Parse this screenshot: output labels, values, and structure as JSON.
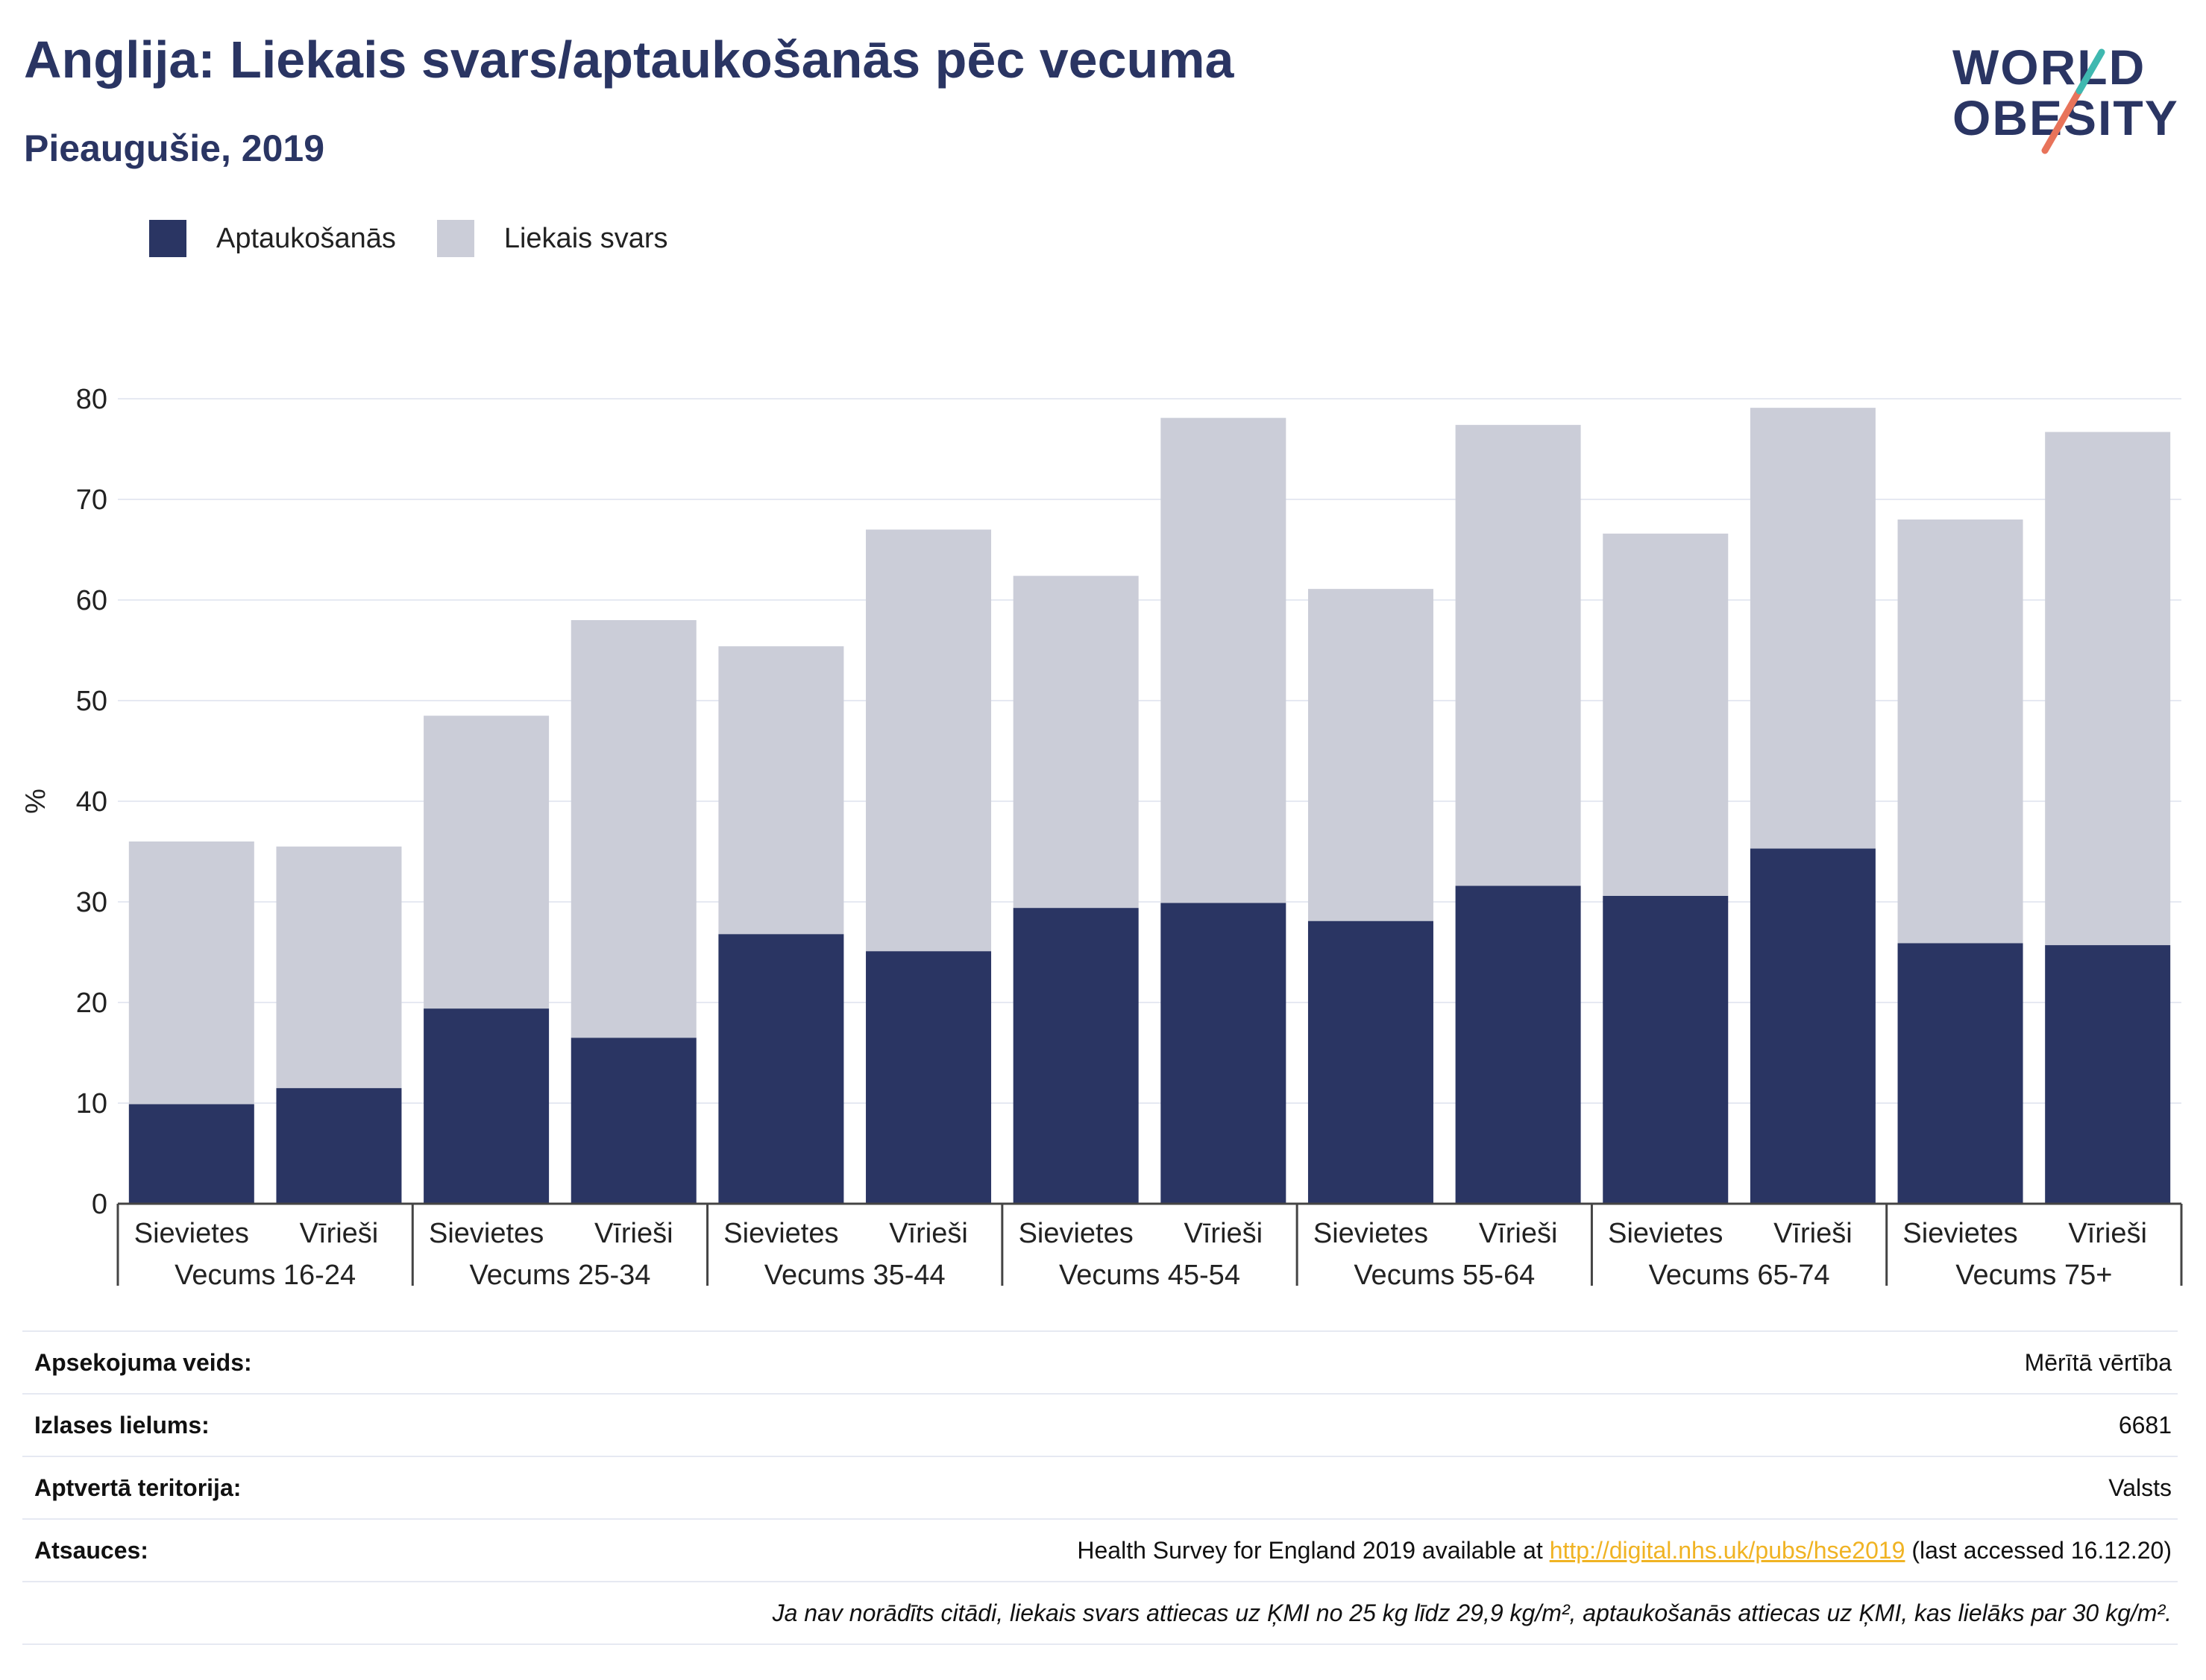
{
  "header": {
    "title": "Anglija: Liekais svars/aptaukošanās pēc vecuma",
    "subtitle": "Pieaugušie, 2019"
  },
  "logo": {
    "line1": "WORLD",
    "line2": "OBESITY"
  },
  "legend": [
    {
      "label": "Aptaukošanās",
      "color": "#2a3563"
    },
    {
      "label": "Liekais svars",
      "color": "#cbcdd8"
    }
  ],
  "chart_data": {
    "type": "bar",
    "stacked": true,
    "ylabel": "%",
    "ylim": [
      0,
      80
    ],
    "yticks": [
      0,
      10,
      20,
      30,
      40,
      50,
      60,
      70,
      80
    ],
    "grid": true,
    "legend_position": "top-left",
    "groups": [
      "Vecums 16-24",
      "Vecums 25-34",
      "Vecums 35-44",
      "Vecums 45-54",
      "Vecums 55-64",
      "Vecums 65-74",
      "Vecums 75+"
    ],
    "categories": [
      "Sievietes",
      "Vīrieši",
      "Sievietes",
      "Vīrieši",
      "Sievietes",
      "Vīrieši",
      "Sievietes",
      "Vīrieši",
      "Sievietes",
      "Vīrieši",
      "Sievietes",
      "Vīrieši",
      "Sievietes",
      "Vīrieši"
    ],
    "series": [
      {
        "name": "Aptaukošanās",
        "color": "#2a3563",
        "values": [
          9.9,
          11.5,
          19.4,
          16.5,
          26.8,
          25.1,
          29.4,
          29.9,
          28.1,
          31.6,
          30.6,
          35.3,
          25.9,
          25.7
        ]
      },
      {
        "name": "Liekais svars",
        "color": "#cbcdd8",
        "values": [
          26.1,
          24.0,
          29.1,
          41.5,
          28.6,
          41.9,
          33.0,
          48.2,
          33.0,
          45.8,
          36.0,
          43.8,
          42.1,
          51.0
        ]
      }
    ]
  },
  "info": {
    "rows": [
      {
        "label": "Apsekojuma veids:",
        "value": "Mērītā vērtība"
      },
      {
        "label": "Izlases lielums:",
        "value": "6681"
      },
      {
        "label": "Aptvertā teritorija:",
        "value": "Valsts"
      }
    ],
    "ref_label": "Atsauces:",
    "ref_pre": "Health Survey for England 2019 available at ",
    "ref_link": "http://digital.nhs.uk/pubs/hse2019",
    "ref_post": " (last accessed 16.12.20)",
    "note": "Ja nav norādīts citādi, liekais svars attiecas uz ĶMI no 25 kg līdz 29,9 kg/m², aptaukošanās attiecas uz ĶMI, kas lielāks par 30 kg/m²."
  }
}
